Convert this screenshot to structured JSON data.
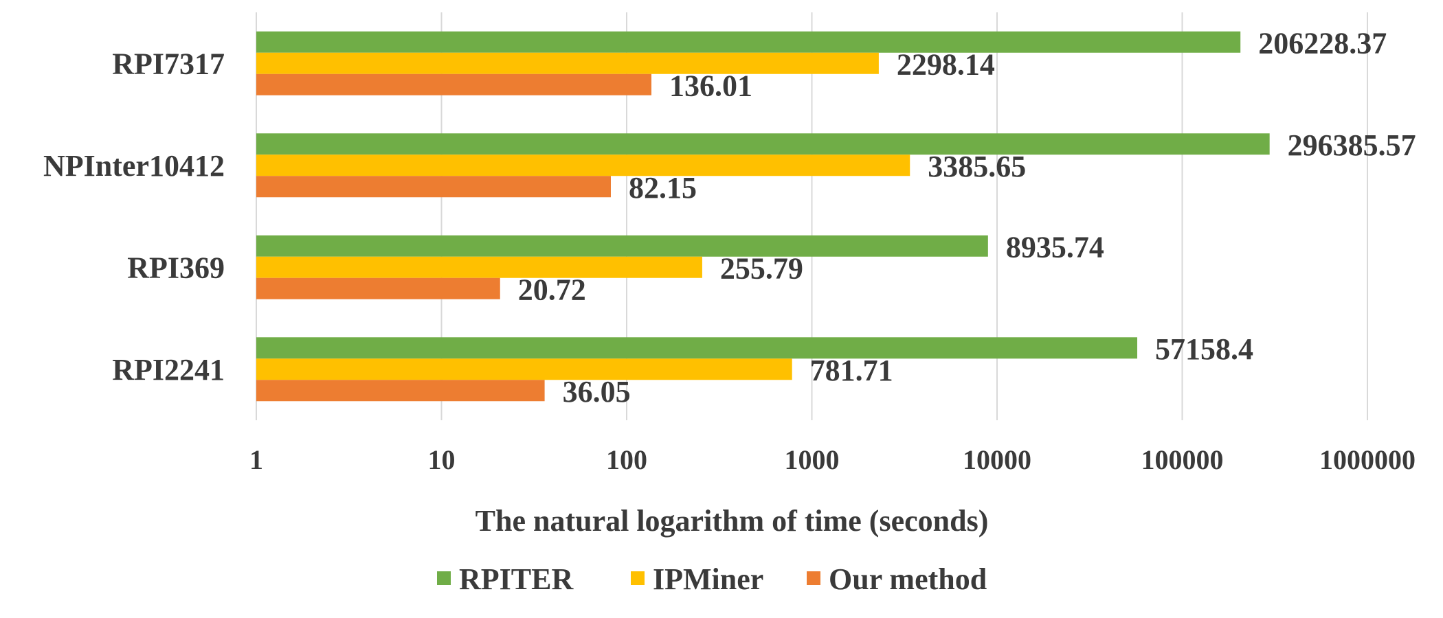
{
  "chart_data": {
    "type": "bar",
    "orientation": "horizontal",
    "x_scale": "log",
    "xlim": [
      1,
      1000000
    ],
    "xticks": [
      "1",
      "10",
      "100",
      "1000",
      "10000",
      "100000",
      "1000000"
    ],
    "xlabel": "The natural logarithm of time (seconds)",
    "ylabel": "",
    "title": "",
    "grid": "vertical",
    "legend_position": "bottom",
    "categories": [
      "RPI7317",
      "NPInter10412",
      "RPI369",
      "RPI2241"
    ],
    "series": [
      {
        "name": "RPITER",
        "color": "#70ad47",
        "values": [
          206228.37,
          296385.57,
          8935.74,
          57158.4
        ],
        "labels": [
          "206228.37",
          "296385.57",
          "8935.74",
          "57158.4"
        ]
      },
      {
        "name": "IPMiner",
        "color": "#ffc000",
        "values": [
          2298.14,
          3385.65,
          255.79,
          781.71
        ],
        "labels": [
          "2298.14",
          "3385.65",
          "255.79",
          "781.71"
        ]
      },
      {
        "name": "Our method",
        "color": "#ed7d31",
        "values": [
          136.01,
          82.15,
          20.72,
          36.05
        ],
        "labels": [
          "136.01",
          "82.15",
          "20.72",
          "36.05"
        ]
      }
    ]
  }
}
